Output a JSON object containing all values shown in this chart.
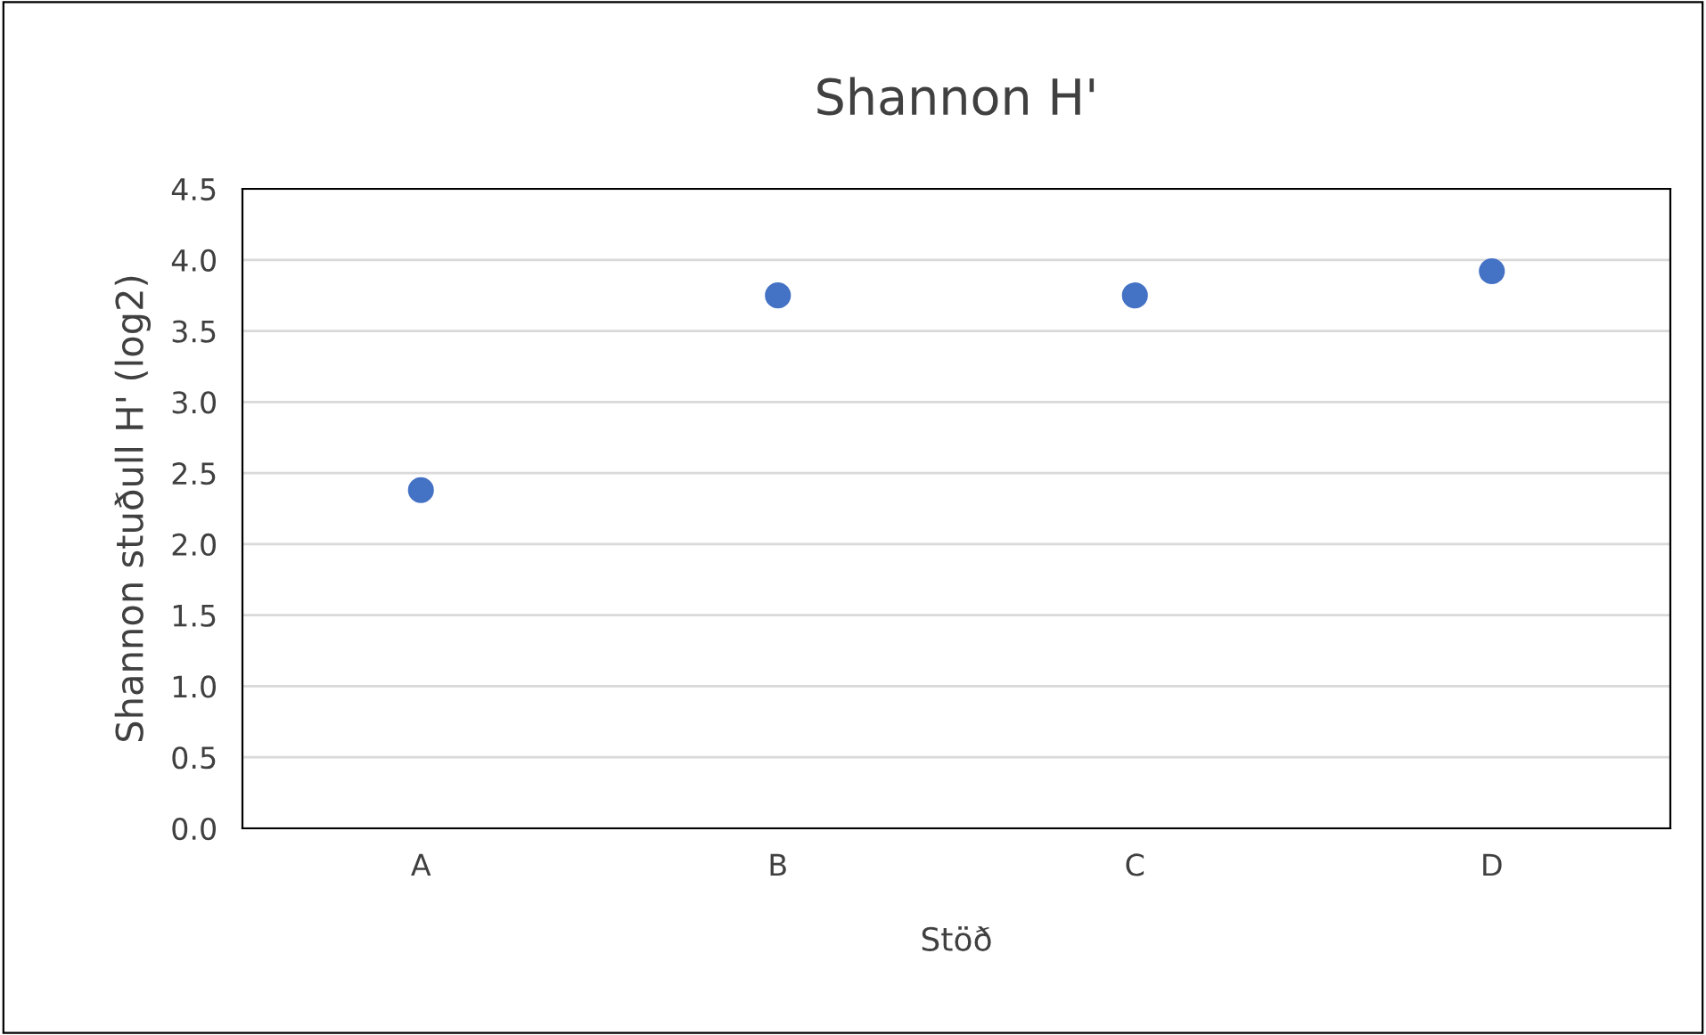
{
  "chart_data": {
    "type": "scatter",
    "title": "Shannon H'",
    "xlabel": "Stöð",
    "ylabel": "Shannon stuðull H' (log2)",
    "categories": [
      "A",
      "B",
      "C",
      "D"
    ],
    "series": [
      {
        "color": "#4472c4",
        "values": [
          2.38,
          3.75,
          3.75,
          3.92
        ]
      }
    ],
    "ylim": [
      0,
      4.5
    ],
    "yticks": [
      {
        "value": 0,
        "label": "0.0"
      },
      {
        "value": 0.5,
        "label": "0.5"
      },
      {
        "value": 1,
        "label": "1.0"
      },
      {
        "value": 1.5,
        "label": "1.5"
      },
      {
        "value": 2,
        "label": "2.0"
      },
      {
        "value": 2.5,
        "label": "2.5"
      },
      {
        "value": 3,
        "label": "3.0"
      },
      {
        "value": 3.5,
        "label": "3.5"
      },
      {
        "value": 4,
        "label": "4.0"
      },
      {
        "value": 4.5,
        "label": "4.5"
      }
    ],
    "grid": "y",
    "marker": "circle"
  }
}
